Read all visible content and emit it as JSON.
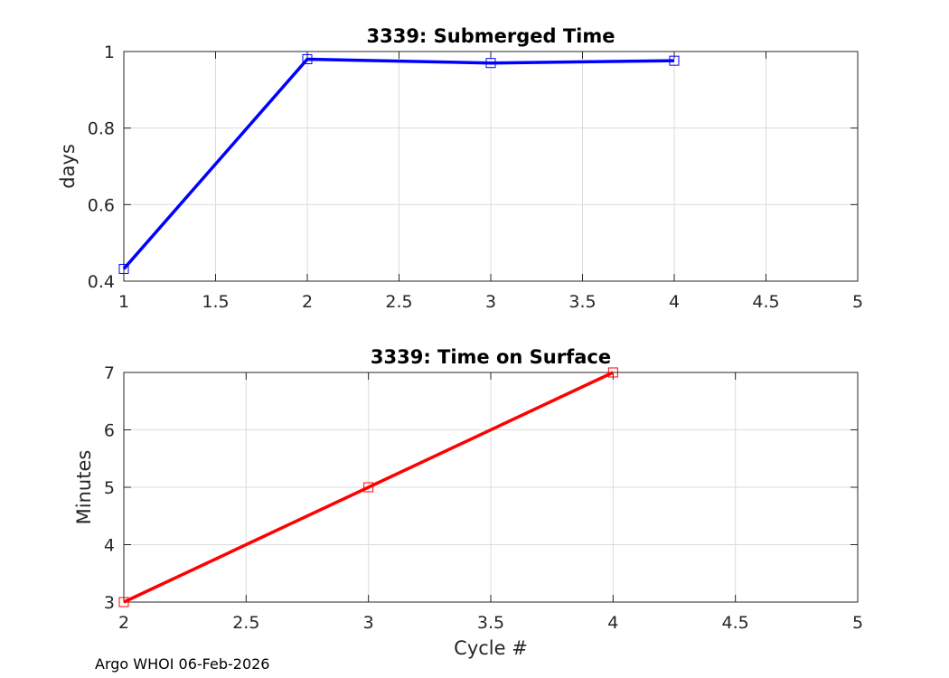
{
  "figure": {
    "footer": "Argo WHOI 06-Feb-2026"
  },
  "chart_data": [
    {
      "type": "line",
      "title": "3339: Submerged Time",
      "xlabel": "",
      "ylabel": "days",
      "xlim": [
        1,
        5
      ],
      "ylim": [
        0.4,
        1
      ],
      "xticks": [
        1,
        1.5,
        2,
        2.5,
        3,
        3.5,
        4,
        4.5,
        5
      ],
      "xtick_labels": [
        "1",
        "1.5",
        "2",
        "2.5",
        "3",
        "3.5",
        "4",
        "4.5",
        "5"
      ],
      "yticks": [
        0.4,
        0.6,
        0.8,
        1
      ],
      "ytick_labels": [
        "0.4",
        "0.6",
        "0.8",
        "1"
      ],
      "grid": true,
      "series": [
        {
          "x": [
            1,
            2,
            3,
            4
          ],
          "y": [
            0.432,
            0.98,
            0.97,
            0.976
          ],
          "color": "#0000ff",
          "marker": "square"
        }
      ]
    },
    {
      "type": "line",
      "title": "3339: Time on Surface",
      "xlabel": "Cycle #",
      "ylabel": "Minutes",
      "xlim": [
        2,
        5
      ],
      "ylim": [
        3,
        7
      ],
      "xticks": [
        2,
        2.5,
        3,
        3.5,
        4,
        4.5,
        5
      ],
      "xtick_labels": [
        "2",
        "2.5",
        "3",
        "3.5",
        "4",
        "4.5",
        "5"
      ],
      "yticks": [
        3,
        4,
        5,
        6,
        7
      ],
      "ytick_labels": [
        "3",
        "4",
        "5",
        "6",
        "7"
      ],
      "grid": true,
      "series": [
        {
          "x": [
            2,
            3,
            4
          ],
          "y": [
            3,
            5,
            7
          ],
          "color": "#ff0000",
          "marker": "square"
        }
      ]
    }
  ]
}
